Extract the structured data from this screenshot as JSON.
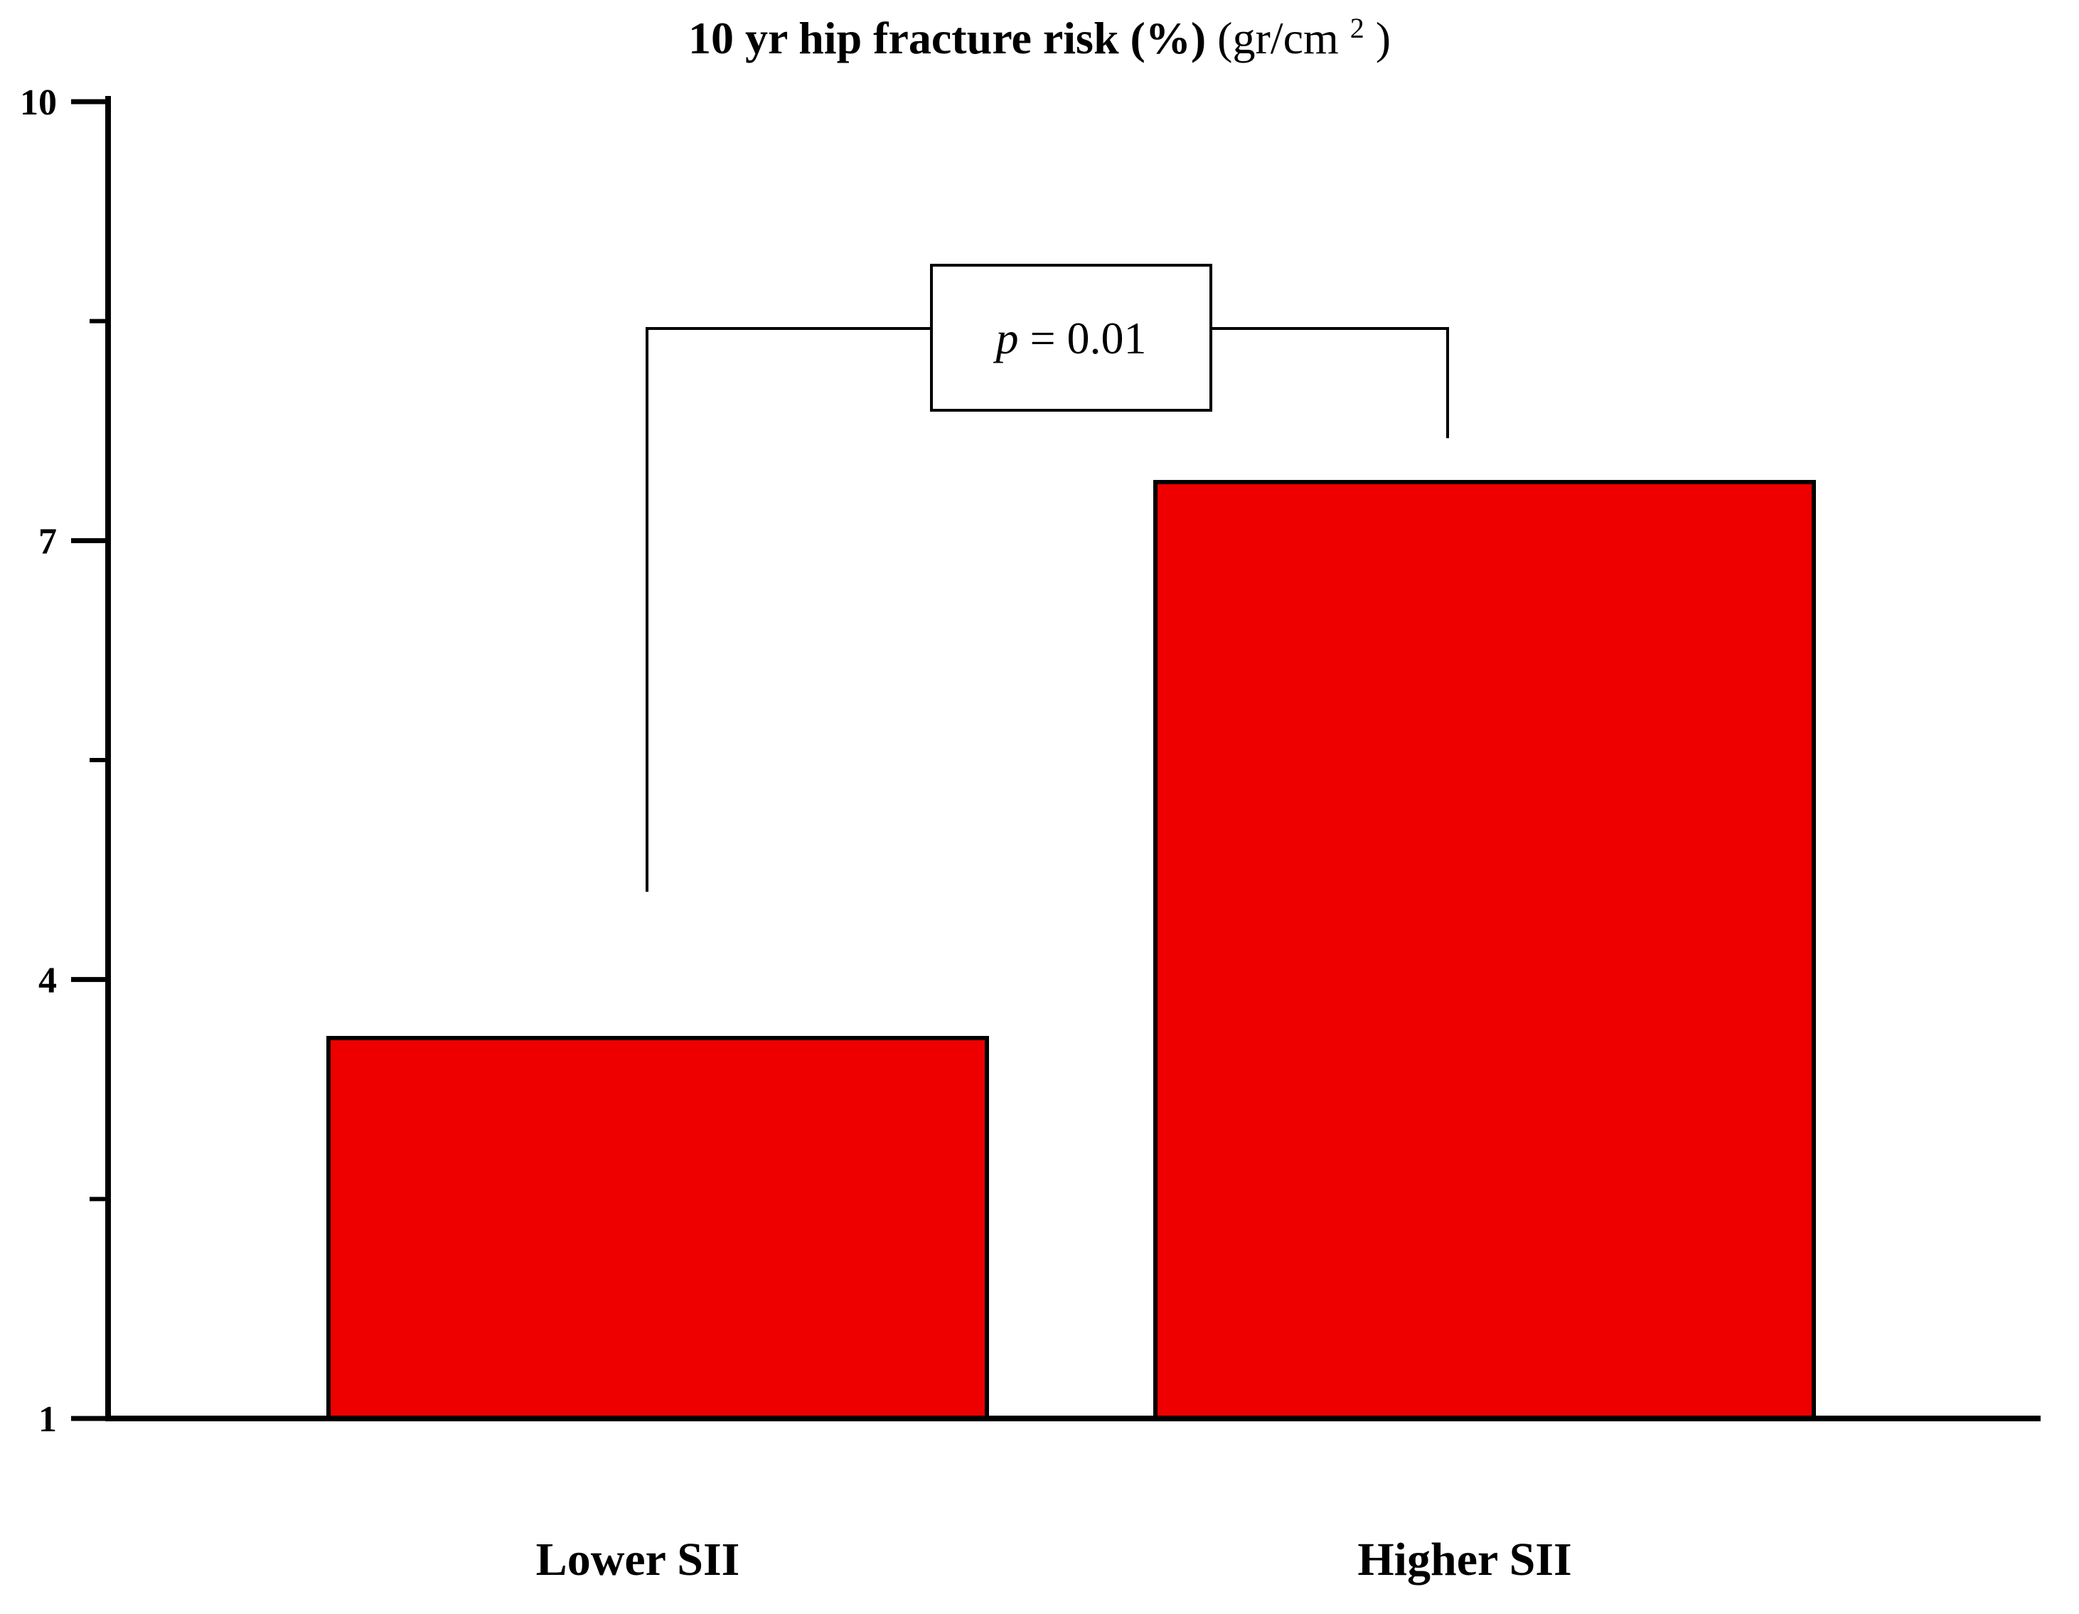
{
  "chart_data": {
    "type": "bar",
    "title": "10 yr hip fracture risk (%)",
    "title_unit": "(gr/cm",
    "title_unit_sup": "2",
    "title_unit_close": ")",
    "categories": [
      "Lower SII",
      "Higher SII"
    ],
    "values": [
      3.6,
      7.4
    ],
    "ylim": [
      1,
      10
    ],
    "yticks": [
      1,
      4,
      7,
      10
    ],
    "yticks_minor": [
      2.5,
      5.5,
      8.5
    ],
    "ytick_labels": [
      "1",
      "4",
      "7",
      "10"
    ],
    "xlabel": "",
    "ylabel": "",
    "grid": false,
    "bar_color": "#ee0000",
    "annotation": {
      "p_symbol": "p",
      "p_rest": " = 0.01",
      "bracket_y": 8.45,
      "left_leg_bottom": 4.6,
      "right_leg_bottom": 7.7
    }
  }
}
